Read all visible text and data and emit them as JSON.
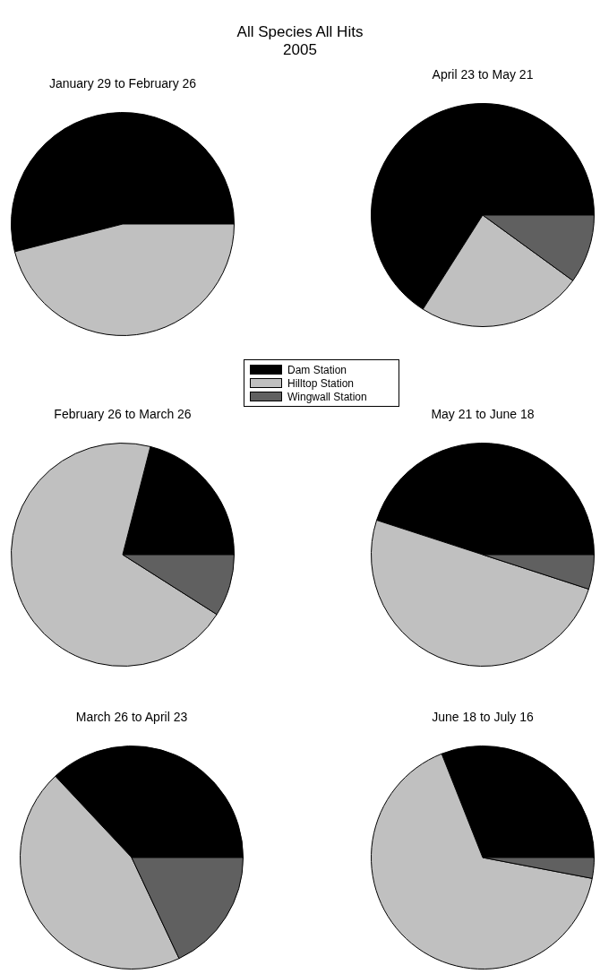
{
  "chart_data": [
    {
      "type": "other",
      "title": "All Species All Hits",
      "subtitle": "2005"
    },
    {
      "type": "pie",
      "title": "January 29 to February 26",
      "categories": [
        "Dam Station",
        "Hilltop Station",
        "Wingwall Station"
      ],
      "values": [
        54,
        46,
        0
      ],
      "colors": [
        "#000000",
        "#c0c0c0",
        "#606060"
      ],
      "legend": "bottom right"
    },
    {
      "type": "pie",
      "title": "April 23 to May 21",
      "categories": [
        null,
        null,
        null
      ],
      "values": [
        66,
        24,
        10
      ],
      "colors": [
        "#000000",
        "#c0c0c0",
        "#606060"
      ]
    },
    {
      "type": "pie",
      "title": "February 26 to March 26",
      "categories": [
        null,
        null,
        null
      ],
      "values": [
        21,
        70,
        9
      ],
      "colors": [
        "#000000",
        "#c0c0c0",
        "#606060"
      ]
    },
    {
      "type": "pie",
      "title": "May 21 to June 18",
      "categories": [
        null,
        null,
        null
      ],
      "values": [
        45,
        50,
        5
      ],
      "colors": [
        "#000000",
        "#c0c0c0",
        "#606060"
      ]
    },
    {
      "type": "pie",
      "title": "March 26 to April 23",
      "categories": [
        null,
        null,
        null
      ],
      "values": [
        37,
        45,
        18
      ],
      "colors": [
        "#000000",
        "#c0c0c0",
        "#606060"
      ]
    },
    {
      "type": "pie",
      "title": "June 18 to July 16",
      "categories": [
        null,
        null,
        null
      ],
      "values": [
        31,
        66,
        3
      ],
      "colors": [
        "#000000",
        "#c0c0c0",
        "#606060"
      ]
    }
  ]
}
